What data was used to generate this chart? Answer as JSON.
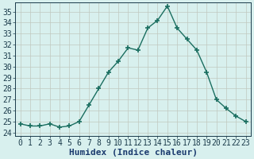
{
  "x": [
    0,
    1,
    2,
    3,
    4,
    5,
    6,
    7,
    8,
    9,
    10,
    11,
    12,
    13,
    14,
    15,
    16,
    17,
    18,
    19,
    20,
    21,
    22,
    23
  ],
  "y": [
    24.8,
    24.6,
    24.6,
    24.8,
    24.5,
    24.6,
    25.0,
    26.5,
    28.0,
    29.5,
    30.5,
    31.7,
    31.5,
    33.5,
    34.2,
    35.5,
    33.5,
    32.5,
    31.5,
    29.5,
    27.0,
    26.2,
    25.5,
    25.0
  ],
  "line_color": "#1a6e60",
  "marker": "+",
  "markersize": 5,
  "markeredgewidth": 1.2,
  "linewidth": 1.0,
  "bg_color": "#d8f0ee",
  "grid_color": "#c0c8c0",
  "xlabel": "Humidex (Indice chaleur)",
  "xlabel_fontsize": 8,
  "xlabel_fontweight": "bold",
  "xlabel_color": "#1a3a6e",
  "yticks": [
    24,
    25,
    26,
    27,
    28,
    29,
    30,
    31,
    32,
    33,
    34,
    35
  ],
  "xticks": [
    0,
    1,
    2,
    3,
    4,
    5,
    6,
    7,
    8,
    9,
    10,
    11,
    12,
    13,
    14,
    15,
    16,
    17,
    18,
    19,
    20,
    21,
    22,
    23
  ],
  "ylim": [
    23.7,
    35.8
  ],
  "xlim": [
    -0.5,
    23.5
  ],
  "tick_fontsize": 7,
  "tick_color": "#1a3a4a"
}
